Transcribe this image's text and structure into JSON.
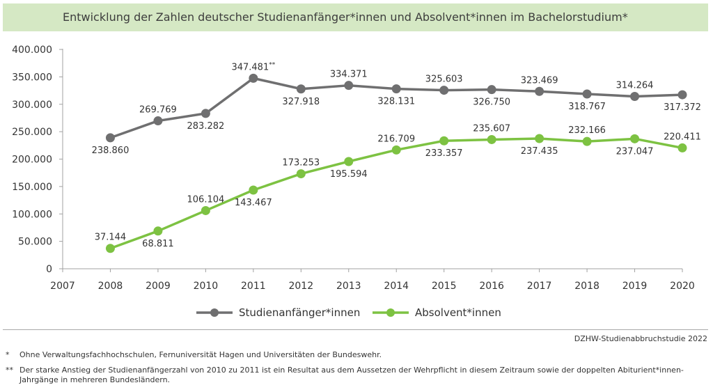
{
  "header": {
    "title": "Entwicklung der Zahlen deutscher Studienanfänger*innen und Absolvent*innen im Bachelorstudium*"
  },
  "colors": {
    "series1": "#6f6f70",
    "series2": "#7dc242",
    "axis": "#a0a0a0",
    "title_bg": "#d5e8c4"
  },
  "chart_data": {
    "type": "line",
    "x": [
      "2007",
      "2008",
      "2009",
      "2010",
      "2011",
      "2012",
      "2013",
      "2014",
      "2015",
      "2016",
      "2017",
      "2018",
      "2019",
      "2020"
    ],
    "yticks": [
      "400.000",
      "350.000",
      "300.000",
      "250.000",
      "200.000",
      "150.000",
      "100.000",
      "50.000",
      "0"
    ],
    "ylim": [
      0,
      400000
    ],
    "grid": false,
    "legend_position": "bottom",
    "series": [
      {
        "name": "Studienanfänger*innen",
        "x": [
          "2008",
          "2009",
          "2010",
          "2011",
          "2012",
          "2013",
          "2014",
          "2015",
          "2016",
          "2017",
          "2018",
          "2019",
          "2020"
        ],
        "values": [
          238860,
          269769,
          283282,
          347481,
          327918,
          334371,
          328131,
          325603,
          326750,
          323469,
          318767,
          314264,
          317372
        ],
        "labels": [
          "238.860",
          "269.769",
          "283.282",
          "347.481**",
          "327.918",
          "334.371",
          "328.131",
          "325.603",
          "326.750",
          "323.469",
          "318.767",
          "314.264",
          "317.372"
        ]
      },
      {
        "name": "Absolvent*innen",
        "x": [
          "2008",
          "2009",
          "2010",
          "2011",
          "2012",
          "2013",
          "2014",
          "2015",
          "2016",
          "2017",
          "2018",
          "2019",
          "2020"
        ],
        "values": [
          37144,
          68811,
          106104,
          143467,
          173253,
          195594,
          216709,
          233357,
          235607,
          237435,
          232166,
          237047,
          220411
        ],
        "labels": [
          "37.144",
          "68.811",
          "106.104",
          "143.467",
          "173.253",
          "195.594",
          "216.709",
          "233.357",
          "235.607",
          "237.435",
          "232.166",
          "237.047",
          "220.411"
        ]
      }
    ]
  },
  "source": "DZHW-Studienabbruchstudie 2022",
  "footnotes": [
    {
      "mark": "*",
      "text": "Ohne Verwaltungsfachhochschulen, Fernuniversität Hagen und Universitäten der Bundeswehr."
    },
    {
      "mark": "**",
      "text": "Der starke Anstieg der Studienanfängerzahl von 2010 zu 2011 ist ein Resultat aus dem Aussetzen der Wehrpflicht in diesem Zeitraum sowie der doppelten Abiturient*innen-Jahrgänge in mehreren Bundesländern."
    }
  ]
}
